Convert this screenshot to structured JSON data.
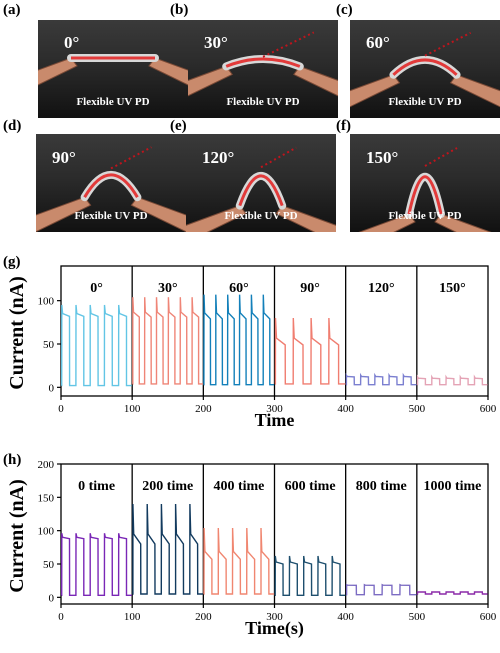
{
  "panels": [
    {
      "label": "(a)",
      "angle_text": "0°",
      "angle_deg": 0,
      "caption": "Flexible UV PD"
    },
    {
      "label": "(b)",
      "angle_text": "30°",
      "angle_deg": 30,
      "caption": "Flexible UV PD"
    },
    {
      "label": "(c)",
      "angle_text": "60°",
      "angle_deg": 60,
      "caption": "Flexible UV PD"
    },
    {
      "label": "(d)",
      "angle_text": "90°",
      "angle_deg": 90,
      "caption": "Flexible UV PD"
    },
    {
      "label": "(e)",
      "angle_text": "120°",
      "angle_deg": 120,
      "caption": "Flexible UV PD"
    },
    {
      "label": "(f)",
      "angle_text": "150°",
      "angle_deg": 150,
      "caption": "Flexible UV PD"
    }
  ],
  "chart_data": [
    {
      "panel_label": "(g)",
      "type": "line",
      "xlabel": "Time",
      "ylabel": "Current (nA)",
      "xlim": [
        0,
        600
      ],
      "ylim": [
        -10,
        140
      ],
      "x_ticks": [
        "0",
        "100",
        "200",
        "300",
        "400",
        "500",
        "600"
      ],
      "y_ticks": [
        "0",
        "50",
        "100"
      ],
      "series": [
        {
          "name": "0°",
          "color": "#62c5e5",
          "x_range": [
            0,
            100
          ],
          "dark": 2,
          "peak": 95,
          "plateau": 82,
          "cycles": 5
        },
        {
          "name": "30°",
          "color": "#ef8577",
          "x_range": [
            100,
            200
          ],
          "dark": 4,
          "peak": 104,
          "plateau": 81,
          "cycles": 6
        },
        {
          "name": "60°",
          "color": "#1380ba",
          "x_range": [
            200,
            300
          ],
          "dark": 3,
          "peak": 107,
          "plateau": 79,
          "cycles": 6
        },
        {
          "name": "90°",
          "color": "#f07d70",
          "x_range": [
            300,
            400
          ],
          "dark": 4,
          "peak": 80,
          "plateau": 49,
          "cycles": 4
        },
        {
          "name": "120°",
          "color": "#7b7fd0",
          "x_range": [
            400,
            500
          ],
          "dark": 3,
          "peak": 14,
          "plateau": 12,
          "cycles": 5
        },
        {
          "name": "150°",
          "color": "#e4a3b5",
          "x_range": [
            500,
            600
          ],
          "dark": 3,
          "peak": 12,
          "plateau": 10,
          "cycles": 5
        }
      ]
    },
    {
      "panel_label": "(h)",
      "type": "line",
      "xlabel": "Time(s)",
      "ylabel": "Current (nA)",
      "xlim": [
        0,
        600
      ],
      "ylim": [
        -10,
        200
      ],
      "x_ticks": [
        "0",
        "100",
        "200",
        "300",
        "400",
        "500",
        "600"
      ],
      "y_ticks": [
        "0",
        "50",
        "100",
        "150",
        "200"
      ],
      "series": [
        {
          "name": "0 time",
          "color": "#7a27b6",
          "x_range": [
            0,
            100
          ],
          "dark": 3,
          "peak": 96,
          "plateau": 88,
          "cycles": 5
        },
        {
          "name": "200 time",
          "color": "#123a5e",
          "x_range": [
            100,
            200
          ],
          "dark": 5,
          "peak": 140,
          "plateau": 80,
          "cycles": 5
        },
        {
          "name": "400 time",
          "color": "#f08670",
          "x_range": [
            200,
            300
          ],
          "dark": 5,
          "peak": 104,
          "plateau": 57,
          "cycles": 5
        },
        {
          "name": "600 time",
          "color": "#1e4f6e",
          "x_range": [
            300,
            400
          ],
          "dark": 3,
          "peak": 62,
          "plateau": 50,
          "cycles": 5
        },
        {
          "name": "800 time",
          "color": "#7c6cc3",
          "x_range": [
            400,
            500
          ],
          "dark": 4,
          "peak": 19,
          "plateau": 18,
          "cycles": 4
        },
        {
          "name": "1000 time",
          "color": "#8b2aa8",
          "x_range": [
            500,
            600
          ],
          "dark": 5,
          "peak": 8,
          "plateau": 8,
          "cycles": 5
        }
      ]
    }
  ]
}
